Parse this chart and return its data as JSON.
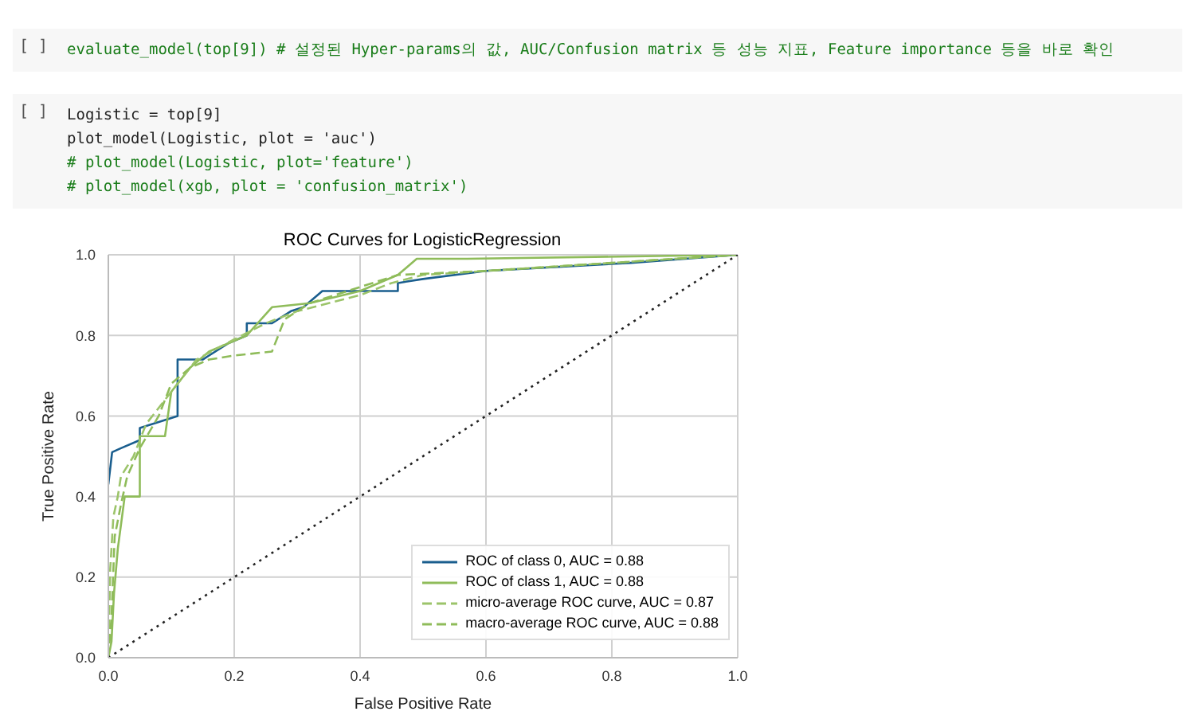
{
  "chart_data": {
    "type": "line",
    "title": "ROC Curves for LogisticRegression",
    "xlabel": "False Positive Rate",
    "ylabel": "True Positive Rate",
    "xlim": [
      0,
      1
    ],
    "ylim": [
      0,
      1
    ],
    "xticks": [
      {
        "value": 0,
        "label": "0.0"
      },
      0.2,
      0.4,
      0.6,
      0.8,
      {
        "value": 1,
        "label": "1.0"
      }
    ],
    "yticks": [
      {
        "value": 0,
        "label": "0.0"
      },
      0.2,
      0.4,
      0.6,
      0.8,
      {
        "value": 1,
        "label": "1.0"
      }
    ],
    "grid": true,
    "legend": "bottom right",
    "marker": "none",
    "annotations": [
      "[ ]",
      "evaluate_model(top[9]) # 설정된 Hyper-params의 값, AUC/Confusion matrix 등 성능 지표, Feature importance 등을 바로 확인",
      "[ ]",
      "Logistic = top[9]",
      "plot_model(Logistic, plot = 'auc')",
      "# plot_model(Logistic, plot='feature')",
      "# plot_model(xgb, plot = 'confusion_matrix')"
    ],
    "series": [
      {
        "name": "ROC of class 0, AUC = 0.88",
        "color": "#1a5e8e",
        "line_style": "solid",
        "x": [
          0,
          0.006,
          0.02,
          0.05,
          0.05,
          0.09,
          0.11,
          0.11,
          0.15,
          0.16,
          0.19,
          0.22,
          0.22,
          0.26,
          0.29,
          0.31,
          0.34,
          0.46,
          0.46,
          0.5,
          0.6,
          0.83,
          1.0
        ],
        "values": [
          0.43,
          0.51,
          0.52,
          0.54,
          0.57,
          0.59,
          0.6,
          0.74,
          0.74,
          0.75,
          0.78,
          0.8,
          0.83,
          0.83,
          0.86,
          0.87,
          0.91,
          0.91,
          0.93,
          0.94,
          0.96,
          0.98,
          1.0
        ]
      },
      {
        "name": "ROC of class 1, AUC = 0.88",
        "color": "#8fbc5a",
        "line_style": "solid",
        "x": [
          0,
          0.005,
          0.009,
          0.015,
          0.026,
          0.05,
          0.05,
          0.09,
          0.1,
          0.13,
          0.16,
          0.22,
          0.26,
          0.32,
          0.4,
          0.46,
          0.49,
          0.57,
          1.0
        ],
        "values": [
          0,
          0.04,
          0.16,
          0.27,
          0.4,
          0.4,
          0.55,
          0.55,
          0.66,
          0.72,
          0.76,
          0.8,
          0.87,
          0.88,
          0.91,
          0.95,
          0.99,
          0.99,
          1.0
        ]
      },
      {
        "name": "micro-average ROC curve, AUC = 0.87",
        "color": "#9cc46a",
        "line_style": "dashed",
        "x": [
          0,
          0.003,
          0.008,
          0.015,
          0.02,
          0.04,
          0.06,
          0.1,
          0.14,
          0.2,
          0.25,
          0.3,
          0.4,
          0.45,
          0.5,
          0.6,
          0.8,
          1.0
        ],
        "values": [
          0,
          0.22,
          0.35,
          0.4,
          0.45,
          0.5,
          0.58,
          0.66,
          0.74,
          0.79,
          0.83,
          0.86,
          0.9,
          0.93,
          0.95,
          0.96,
          0.98,
          1.0
        ]
      },
      {
        "name": "macro-average ROC curve, AUC = 0.88",
        "color": "#8fbc5a",
        "line_style": "dashed",
        "x": [
          0,
          0.005,
          0.01,
          0.02,
          0.03,
          0.05,
          0.08,
          0.1,
          0.13,
          0.16,
          0.2,
          0.26,
          0.28,
          0.32,
          0.4,
          0.46,
          0.6,
          0.8,
          1.0
        ],
        "values": [
          0,
          0.1,
          0.3,
          0.38,
          0.45,
          0.52,
          0.6,
          0.68,
          0.72,
          0.74,
          0.75,
          0.76,
          0.84,
          0.88,
          0.92,
          0.95,
          0.96,
          0.98,
          1.0
        ]
      },
      {
        "color": "#222222",
        "line_style": "dotted",
        "x": [
          0,
          1
        ],
        "values": [
          0,
          1
        ]
      }
    ]
  }
}
